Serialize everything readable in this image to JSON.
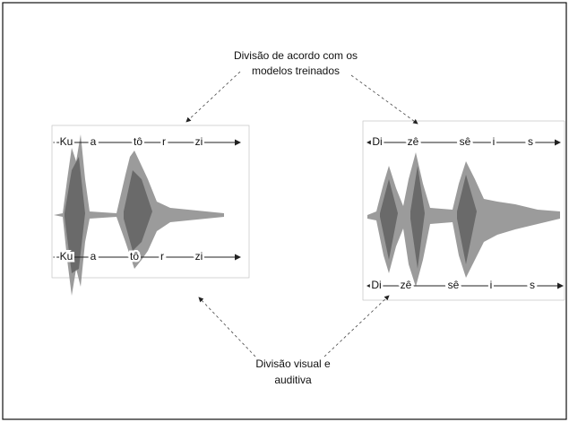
{
  "annotations": {
    "top": [
      "Divisão de acordo com os",
      "modelos treinados"
    ],
    "bottom": [
      "Divisão visual e",
      "auditiva"
    ]
  },
  "panels": [
    {
      "top_segments": [
        "-Ku",
        "a",
        "tô",
        "r",
        "zi"
      ],
      "bottom_segments": [
        "-Ku",
        "a",
        "tô",
        "r",
        "zi"
      ]
    },
    {
      "top_segments": [
        "Di",
        "zê",
        "sê",
        "i",
        "s"
      ],
      "bottom_segments": [
        "Di",
        "zê",
        "sê",
        "i",
        "s"
      ]
    }
  ]
}
